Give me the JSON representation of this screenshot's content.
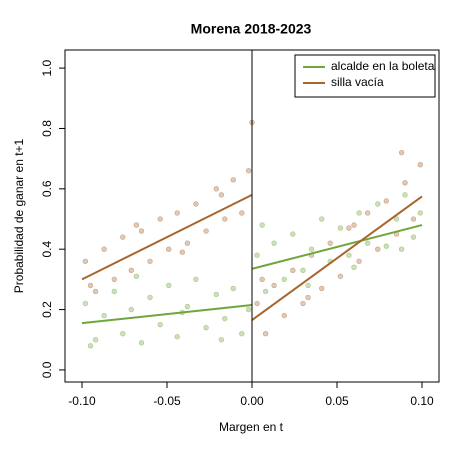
{
  "chart_data": {
    "type": "scatter",
    "title": "Morena 2018-2023",
    "x_label": "Margen en t",
    "y_label": "Probabilidad de ganar en t+1",
    "xlim": [
      -0.11,
      0.11
    ],
    "ylim": [
      -0.04,
      1.06
    ],
    "xticks": [
      {
        "value": -0.1,
        "label": "-0.10"
      },
      {
        "value": -0.05,
        "label": "-0.05"
      },
      {
        "value": 0,
        "label": "0.00"
      },
      {
        "value": 0.05,
        "label": "0.05"
      },
      {
        "value": 0.1,
        "label": "0.10"
      }
    ],
    "yticks": [
      {
        "value": 0,
        "label": "0.0"
      },
      {
        "value": 0.2,
        "label": "0.2"
      },
      {
        "value": 0.4,
        "label": "0.4"
      },
      {
        "value": 0.6,
        "label": "0.6"
      },
      {
        "value": 0.8,
        "label": "0.8"
      },
      {
        "value": 1,
        "label": "1.0"
      }
    ],
    "legend": "top-right",
    "series": [
      {
        "name": "alcalde en la boleta",
        "color": "#6fa63a",
        "x": [
          -0.098,
          -0.092,
          -0.087,
          -0.081,
          -0.076,
          -0.071,
          -0.065,
          -0.06,
          -0.054,
          -0.049,
          -0.044,
          -0.038,
          -0.033,
          -0.027,
          -0.021,
          -0.016,
          -0.011,
          -0.006,
          -0.002,
          -0.095,
          -0.068,
          -0.041,
          -0.018,
          0.003,
          0.008,
          0.013,
          0.019,
          0.024,
          0.03,
          0.035,
          0.041,
          0.046,
          0.052,
          0.057,
          0.063,
          0.068,
          0.074,
          0.079,
          0.085,
          0.09,
          0.095,
          0.099,
          0.006,
          0.033,
          0.06,
          0.088
        ],
        "values": [
          0.22,
          0.1,
          0.18,
          0.26,
          0.12,
          0.2,
          0.09,
          0.24,
          0.15,
          0.28,
          0.11,
          0.21,
          0.3,
          0.14,
          0.25,
          0.17,
          0.27,
          0.12,
          0.2,
          0.08,
          0.31,
          0.19,
          0.1,
          0.38,
          0.26,
          0.42,
          0.3,
          0.45,
          0.33,
          0.4,
          0.5,
          0.36,
          0.47,
          0.38,
          0.52,
          0.42,
          0.55,
          0.41,
          0.5,
          0.58,
          0.44,
          0.52,
          0.48,
          0.28,
          0.34,
          0.4
        ],
        "lines": [
          {
            "x": [
              -0.1,
              0
            ],
            "values": [
              0.155,
              0.215
            ]
          },
          {
            "x": [
              0,
              0.1
            ],
            "values": [
              0.335,
              0.48
            ]
          }
        ]
      },
      {
        "name": "silla vacía",
        "color": "#a8652e",
        "x": [
          -0.098,
          -0.092,
          -0.087,
          -0.081,
          -0.076,
          -0.071,
          -0.065,
          -0.06,
          -0.054,
          -0.049,
          -0.044,
          -0.038,
          -0.033,
          -0.027,
          -0.021,
          -0.016,
          -0.011,
          -0.006,
          -0.002,
          -0.095,
          -0.068,
          -0.041,
          -0.018,
          0.003,
          0.008,
          0.013,
          0.019,
          0.024,
          0.03,
          0.035,
          0.041,
          0.046,
          0.052,
          0.057,
          0.063,
          0.068,
          0.074,
          0.079,
          0.085,
          0.09,
          0.095,
          0.099,
          0.006,
          0.033,
          0.06,
          0.088,
          0
        ],
        "values": [
          0.36,
          0.26,
          0.4,
          0.3,
          0.44,
          0.33,
          0.46,
          0.36,
          0.5,
          0.4,
          0.52,
          0.42,
          0.55,
          0.46,
          0.6,
          0.5,
          0.63,
          0.52,
          0.66,
          0.28,
          0.48,
          0.39,
          0.58,
          0.22,
          0.12,
          0.28,
          0.18,
          0.33,
          0.22,
          0.38,
          0.27,
          0.42,
          0.31,
          0.47,
          0.36,
          0.52,
          0.4,
          0.56,
          0.45,
          0.62,
          0.5,
          0.68,
          0.3,
          0.24,
          0.48,
          0.72,
          0.82
        ],
        "lines": [
          {
            "x": [
              -0.1,
              0
            ],
            "values": [
              0.3,
              0.58
            ]
          },
          {
            "x": [
              0,
              0.1
            ],
            "values": [
              0.165,
              0.575
            ]
          }
        ]
      }
    ]
  }
}
